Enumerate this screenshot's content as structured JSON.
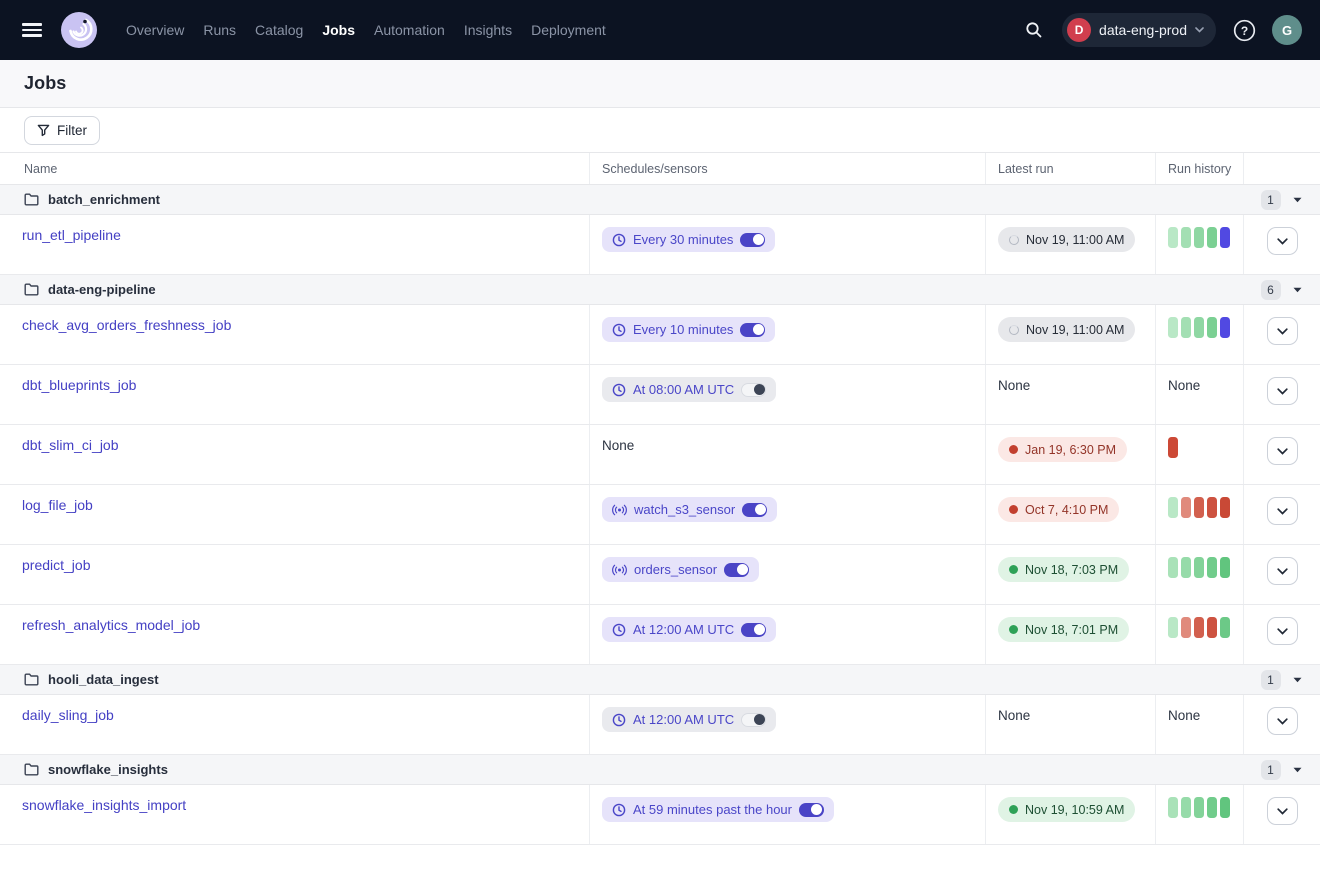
{
  "topnav": {
    "nav_items": [
      {
        "label": "Overview",
        "active": false
      },
      {
        "label": "Runs",
        "active": false
      },
      {
        "label": "Catalog",
        "active": false
      },
      {
        "label": "Jobs",
        "active": true
      },
      {
        "label": "Automation",
        "active": false
      },
      {
        "label": "Insights",
        "active": false
      },
      {
        "label": "Deployment",
        "active": false
      }
    ],
    "deployment_switcher": {
      "initial": "D",
      "name": "data-eng-prod"
    },
    "user_initial": "G"
  },
  "page": {
    "title": "Jobs",
    "filter_button": "Filter"
  },
  "table": {
    "columns": [
      "Name",
      "Schedules/sensors",
      "Latest run",
      "Run history"
    ],
    "none_label": "None",
    "groups": [
      {
        "name": "batch_enrichment",
        "count": "1",
        "jobs": [
          {
            "name": "run_etl_pipeline",
            "trigger": {
              "kind": "schedule",
              "label": "Every 30 minutes",
              "enabled": true
            },
            "latest_run": {
              "status": "in_progress",
              "label": "Nov 19, 11:00 AM"
            },
            "history": [
              "#b9e8c6",
              "#a3dfb3",
              "#8fd7a3",
              "#7bd093",
              "#5149e2"
            ]
          }
        ]
      },
      {
        "name": "data-eng-pipeline",
        "count": "6",
        "jobs": [
          {
            "name": "check_avg_orders_freshness_job",
            "trigger": {
              "kind": "schedule",
              "label": "Every 10 minutes",
              "enabled": true
            },
            "latest_run": {
              "status": "in_progress",
              "label": "Nov 19, 11:00 AM"
            },
            "history": [
              "#b9e8c6",
              "#a3dfb3",
              "#8fd7a3",
              "#7bd093",
              "#5149e2"
            ]
          },
          {
            "name": "dbt_blueprints_job",
            "trigger": {
              "kind": "schedule",
              "label": "At 08:00 AM UTC",
              "enabled": false
            },
            "latest_run": {
              "status": "none"
            },
            "history": "none"
          },
          {
            "name": "dbt_slim_ci_job",
            "trigger": {
              "kind": "none"
            },
            "latest_run": {
              "status": "failure",
              "label": "Jan 19, 6:30 PM"
            },
            "history": [
              "#cc4936"
            ]
          },
          {
            "name": "log_file_job",
            "trigger": {
              "kind": "sensor",
              "label": "watch_s3_sensor",
              "enabled": true
            },
            "latest_run": {
              "status": "failure",
              "label": "Oct 7, 4:10 PM"
            },
            "history": [
              "#b9e8c6",
              "#e08a7c",
              "#d2604e",
              "#cd5240",
              "#c94936"
            ]
          },
          {
            "name": "predict_job",
            "trigger": {
              "kind": "sensor",
              "label": "orders_sensor",
              "enabled": true
            },
            "latest_run": {
              "status": "success",
              "label": "Nov 18, 7:03 PM"
            },
            "history": [
              "#a9e2b8",
              "#96dba9",
              "#83d399",
              "#71cc8b",
              "#61c57e"
            ]
          },
          {
            "name": "refresh_analytics_model_job",
            "trigger": {
              "kind": "schedule",
              "label": "At 12:00 AM UTC",
              "enabled": true
            },
            "latest_run": {
              "status": "success",
              "label": "Nov 18, 7:01 PM"
            },
            "history": [
              "#b9e8c6",
              "#e08a7c",
              "#d2604e",
              "#cd5240",
              "#6cc987"
            ]
          }
        ]
      },
      {
        "name": "hooli_data_ingest",
        "count": "1",
        "jobs": [
          {
            "name": "daily_sling_job",
            "trigger": {
              "kind": "schedule",
              "label": "At 12:00 AM UTC",
              "enabled": false
            },
            "latest_run": {
              "status": "none"
            },
            "history": "none"
          }
        ]
      },
      {
        "name": "snowflake_insights",
        "count": "1",
        "jobs": [
          {
            "name": "snowflake_insights_import",
            "trigger": {
              "kind": "schedule",
              "label": "At 59 minutes past the hour",
              "enabled": true
            },
            "latest_run": {
              "status": "success",
              "label": "Nov 19, 10:59 AM"
            },
            "history": [
              "#a9e2b8",
              "#96dba9",
              "#83d399",
              "#71cc8b",
              "#61c57e"
            ]
          }
        ]
      }
    ]
  },
  "colors": {
    "topnav_bg": "#0c1322",
    "accent_indigo": "#4a46c8",
    "badge_on_bg": "#e6e3fa",
    "badge_off_bg": "#e9eaee",
    "run_in_progress_bg": "#e7e8eb",
    "run_success_bg": "#e0f3e5",
    "run_failure_bg": "#fbe8e5",
    "success_dot": "#2ea157",
    "failure_dot": "#c2402f",
    "history_in_progress_bar": "#5149e2",
    "deployment_badge": "#d13e4e",
    "avatar_bg": "#5f8e8b"
  }
}
